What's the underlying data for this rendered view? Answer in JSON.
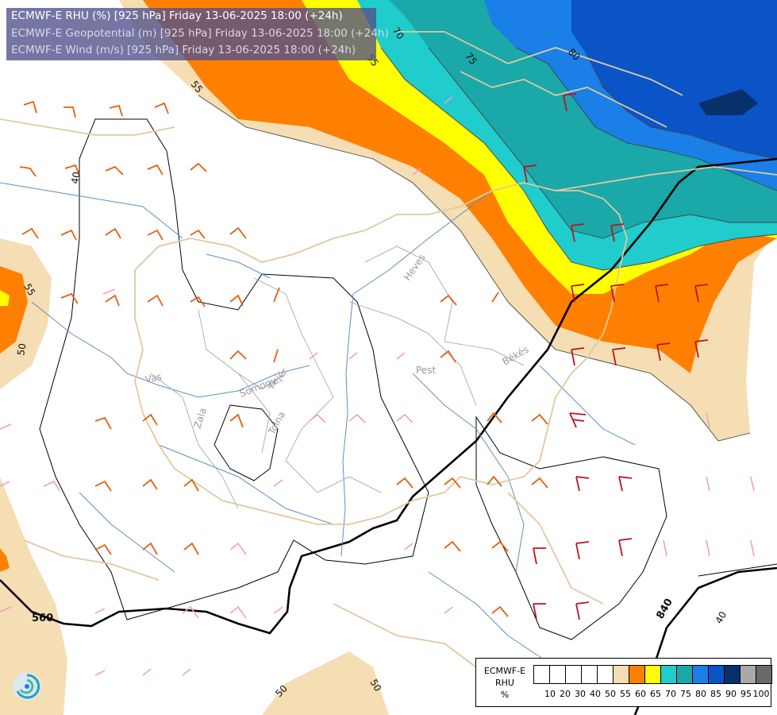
{
  "header": {
    "line1": "ECMWF-E RHU (%) [925 hPa] Friday 13-06-2025 18:00 (+24h)",
    "line2": "ECMWF-E Geopotential (m) [925 hPa] Friday 13-06-2025 18:00 (+24h)",
    "line3": "ECMWF-E Wind (m/s) [925 hPa] Friday 13-06-2025 18:00 (+24h)"
  },
  "map": {
    "region_labels": [
      "Vas",
      "Zala",
      "Somogy",
      "Fejér",
      "Tolna",
      "Pest",
      "Heves",
      "Békés"
    ],
    "isohume_labels": [
      "70",
      "75",
      "80",
      "55",
      "55",
      "50",
      "40",
      "50",
      "50",
      "55"
    ],
    "geopotential_labels": [
      "560",
      "840",
      "40"
    ],
    "colors": {
      "rhu_55": "#f5deb3",
      "rhu_60": "#ff8000",
      "rhu_65": "#ffff00",
      "rhu_70": "#20cccc",
      "rhu_75": "#1aa8a8",
      "rhu_80": "#1a7fe6",
      "rhu_85": "#0b54c8",
      "rhu_90": "#08306b",
      "border": "#e0c9a0",
      "river": "#5f8fbf",
      "county": "#a0a0a0"
    }
  },
  "legend": {
    "title": "ECMWF-E RHU %",
    "title_lines": [
      "ECMWF-E",
      "RHU",
      "%"
    ],
    "ticks": [
      "10",
      "20",
      "30",
      "40",
      "50",
      "55",
      "60",
      "65",
      "70",
      "75",
      "80",
      "85",
      "90",
      "95",
      "100"
    ],
    "colors": [
      "#ffffff",
      "#ffffff",
      "#ffffff",
      "#ffffff",
      "#ffffff",
      "#f5deb3",
      "#ff8000",
      "#ffff00",
      "#20cccc",
      "#1aa8a8",
      "#1a7fe6",
      "#0b54c8",
      "#08306b",
      "#a9a9a9",
      "#696969"
    ]
  }
}
